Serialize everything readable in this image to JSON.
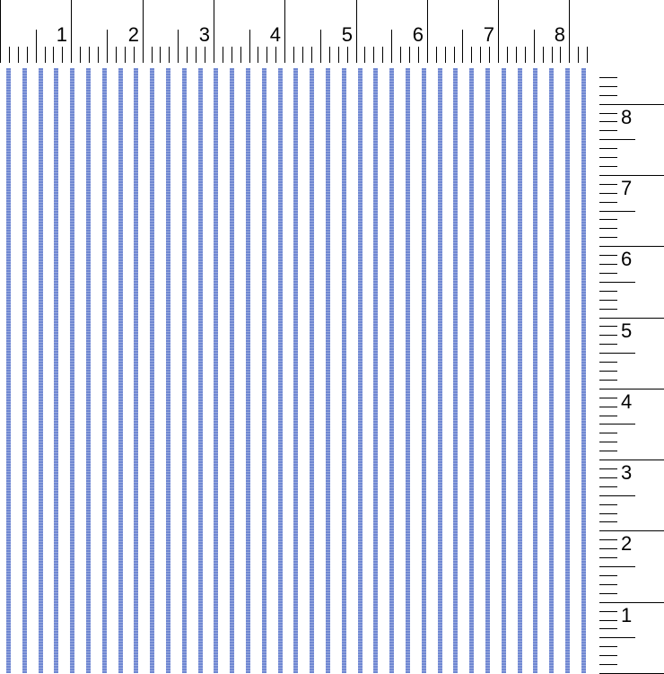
{
  "ruler_top": {
    "unit_labels": [
      "1",
      "2",
      "3",
      "4",
      "5",
      "6",
      "7",
      "8"
    ],
    "subdivisions": 8
  },
  "ruler_side": {
    "unit_labels": [
      "1",
      "2",
      "3",
      "4",
      "5",
      "6",
      "7",
      "8"
    ],
    "subdivisions": 8
  },
  "fabric": {
    "pattern": "vertical pinstripe",
    "stripe_color": "#7088d2",
    "background_color": "#ffffff",
    "stripe_count": 37
  }
}
